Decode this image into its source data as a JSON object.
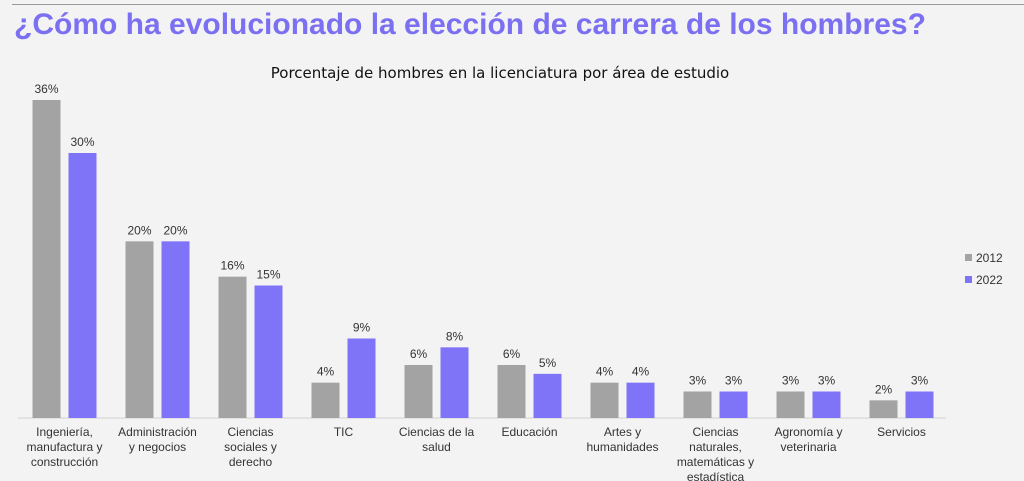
{
  "headline": "¿Cómo ha evolucionado la elección de carrera de los hombres?",
  "chart_data": {
    "type": "bar",
    "title": "Porcentaje de hombres en la licenciatura por área de estudio",
    "categories": [
      [
        "Ingeniería,",
        "manufactura y",
        "construcción"
      ],
      [
        "Administración",
        "y negocios"
      ],
      [
        "Ciencias",
        "sociales y",
        "derecho"
      ],
      [
        "TIC"
      ],
      [
        "Ciencias de la",
        "salud"
      ],
      [
        "Educación"
      ],
      [
        "Artes y",
        "humanidades"
      ],
      [
        "Ciencias",
        "naturales,",
        "matemáticas y",
        "estadística"
      ],
      [
        "Agronomía y",
        "veterinaria"
      ],
      [
        "Servicios"
      ]
    ],
    "series": [
      {
        "name": "2012",
        "color": "#a3a3a3",
        "values": [
          36,
          20,
          16,
          4,
          6,
          6,
          4,
          3,
          3,
          2
        ],
        "value_labels": [
          "36%",
          "20%",
          "16%",
          "4%",
          "6%",
          "6%",
          "4%",
          "3%",
          "3%",
          "2%"
        ]
      },
      {
        "name": "2022",
        "color": "#7f74f7",
        "values": [
          30,
          20,
          15,
          9,
          8,
          5,
          4,
          3,
          3,
          3
        ],
        "value_labels": [
          "30%",
          "20%",
          "15%",
          "9%",
          "8%",
          "5%",
          "4%",
          "3%",
          "3%",
          "3%"
        ]
      }
    ],
    "ylim": [
      0,
      36
    ],
    "legend_position": "right",
    "grid": false
  }
}
